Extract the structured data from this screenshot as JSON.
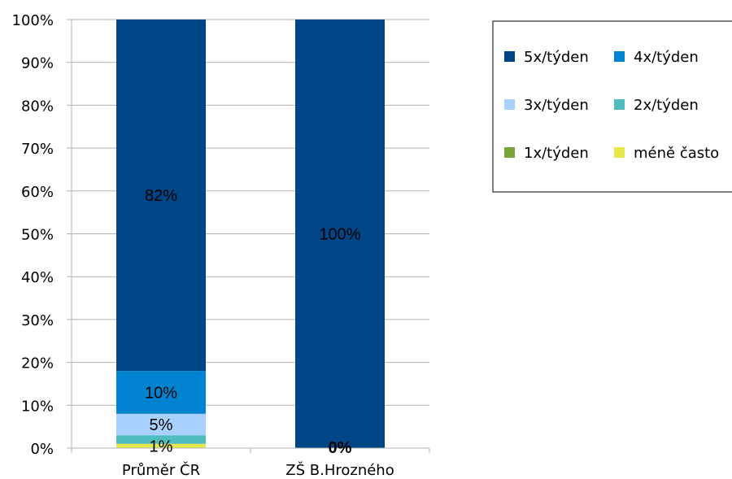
{
  "chart_data": {
    "type": "bar",
    "stacked": true,
    "percent": true,
    "categories": [
      "Průměr ČR",
      "ZŠ B.Hrozného"
    ],
    "series": [
      {
        "name": "5x/týden",
        "color": "#004586",
        "values": [
          82,
          100
        ],
        "labels": [
          "82%",
          "100%"
        ]
      },
      {
        "name": "4x/týden",
        "color": "#0084d1",
        "values": [
          10,
          0
        ],
        "labels": [
          "10%",
          ""
        ]
      },
      {
        "name": "3x/týden",
        "color": "#a8d1ff",
        "values": [
          5,
          0
        ],
        "labels": [
          "5%",
          ""
        ]
      },
      {
        "name": "2x/týden",
        "color": "#4fbdbd",
        "values": [
          2,
          0
        ],
        "labels": [
          "",
          ""
        ]
      },
      {
        "name": "1x/týden",
        "color": "#7aa33a",
        "values": [
          0,
          0
        ],
        "labels": [
          "",
          ""
        ]
      },
      {
        "name": "méně často",
        "color": "#e6e84a",
        "values": [
          1,
          0
        ],
        "labels": [
          "1%",
          "0%"
        ]
      }
    ],
    "ylim": [
      0,
      100
    ],
    "yticks": [
      "0%",
      "10%",
      "20%",
      "30%",
      "40%",
      "50%",
      "60%",
      "70%",
      "80%",
      "90%",
      "100%"
    ],
    "grid": true,
    "legend": "right"
  }
}
